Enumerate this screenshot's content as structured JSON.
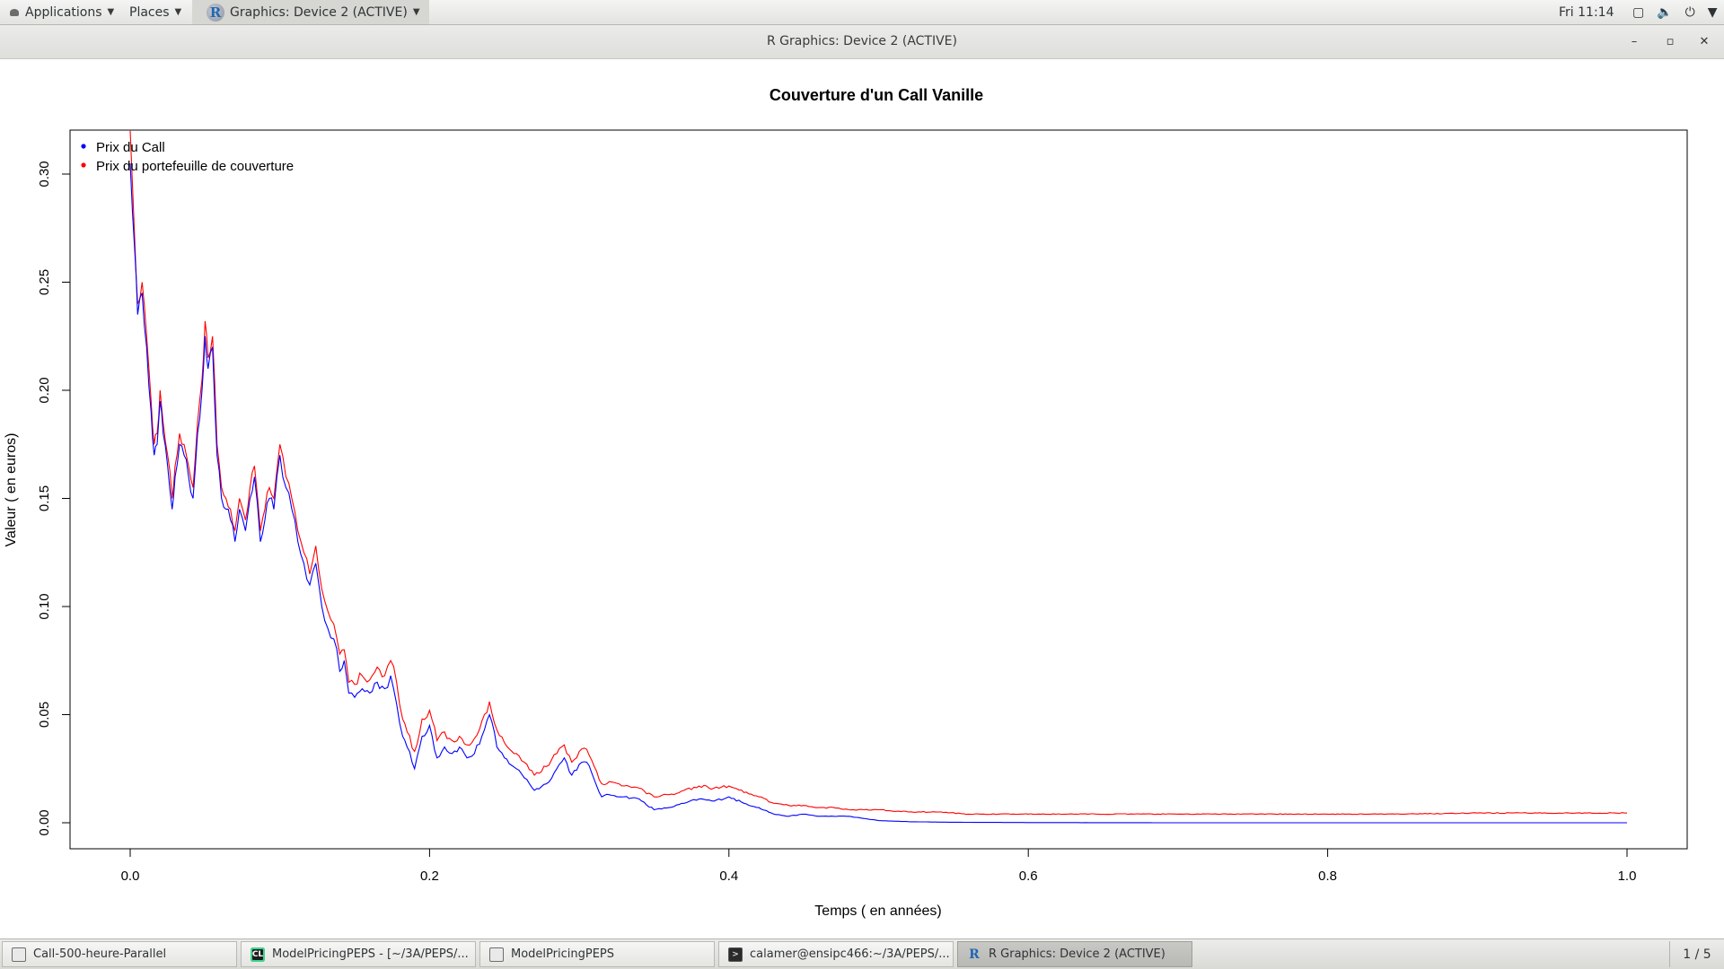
{
  "topbar": {
    "applications_label": "Applications",
    "places_label": "Places",
    "window_menu_label": "Graphics: Device 2 (ACTIVE)",
    "clock": "Fri 11:14"
  },
  "window": {
    "title": "R Graphics: Device 2 (ACTIVE)",
    "minimize": "–",
    "maximize": "▫",
    "close": "✕"
  },
  "chart_data": {
    "type": "line",
    "title": "Couverture d'un Call Vanille",
    "xlabel": "Temps ( en années)",
    "ylabel": "Valeur ( en euros)",
    "xlim": [
      0,
      1
    ],
    "ylim": [
      0,
      0.31
    ],
    "x_ticks": [
      "0.0",
      "0.2",
      "0.4",
      "0.6",
      "0.8",
      "1.0"
    ],
    "y_ticks": [
      "0.00",
      "0.05",
      "0.10",
      "0.15",
      "0.20",
      "0.25",
      "0.30"
    ],
    "legend_position": "top-left",
    "grid": false,
    "series": [
      {
        "name": "Prix du Call",
        "color": "#0000ff",
        "x": [
          0,
          0.003,
          0.005,
          0.008,
          0.011,
          0.014,
          0.016,
          0.018,
          0.02,
          0.022,
          0.025,
          0.028,
          0.03,
          0.033,
          0.036,
          0.039,
          0.042,
          0.045,
          0.048,
          0.05,
          0.052,
          0.055,
          0.058,
          0.061,
          0.064,
          0.067,
          0.07,
          0.073,
          0.077,
          0.08,
          0.083,
          0.087,
          0.09,
          0.093,
          0.096,
          0.1,
          0.104,
          0.108,
          0.112,
          0.116,
          0.12,
          0.124,
          0.128,
          0.132,
          0.136,
          0.14,
          0.143,
          0.146,
          0.15,
          0.155,
          0.16,
          0.165,
          0.17,
          0.174,
          0.178,
          0.182,
          0.185,
          0.19,
          0.195,
          0.2,
          0.205,
          0.21,
          0.215,
          0.22,
          0.225,
          0.23,
          0.235,
          0.24,
          0.245,
          0.25,
          0.258,
          0.265,
          0.27,
          0.278,
          0.285,
          0.29,
          0.295,
          0.3,
          0.305,
          0.31,
          0.315,
          0.32,
          0.33,
          0.34,
          0.35,
          0.36,
          0.37,
          0.38,
          0.39,
          0.4,
          0.41,
          0.42,
          0.43,
          0.44,
          0.45,
          0.46,
          0.47,
          0.48,
          0.49,
          0.5,
          0.52,
          0.54,
          0.56,
          0.6,
          0.7,
          0.8,
          0.9,
          1.0
        ],
        "values": [
          0.305,
          0.265,
          0.235,
          0.245,
          0.22,
          0.19,
          0.17,
          0.175,
          0.195,
          0.18,
          0.165,
          0.145,
          0.16,
          0.175,
          0.17,
          0.16,
          0.15,
          0.18,
          0.2,
          0.225,
          0.21,
          0.22,
          0.17,
          0.15,
          0.145,
          0.14,
          0.13,
          0.145,
          0.135,
          0.15,
          0.16,
          0.13,
          0.14,
          0.15,
          0.145,
          0.17,
          0.155,
          0.145,
          0.13,
          0.12,
          0.11,
          0.12,
          0.1,
          0.09,
          0.085,
          0.07,
          0.075,
          0.06,
          0.058,
          0.062,
          0.06,
          0.065,
          0.062,
          0.068,
          0.055,
          0.04,
          0.035,
          0.025,
          0.04,
          0.045,
          0.03,
          0.035,
          0.032,
          0.035,
          0.03,
          0.032,
          0.04,
          0.05,
          0.035,
          0.03,
          0.025,
          0.02,
          0.015,
          0.018,
          0.025,
          0.03,
          0.022,
          0.027,
          0.028,
          0.02,
          0.012,
          0.013,
          0.012,
          0.011,
          0.006,
          0.007,
          0.009,
          0.011,
          0.01,
          0.012,
          0.009,
          0.007,
          0.004,
          0.003,
          0.004,
          0.003,
          0.003,
          0.003,
          0.002,
          0.001,
          0.0005,
          0.0003,
          0.0002,
          0.0001,
          0.0,
          0.0,
          0.0,
          0.0
        ]
      },
      {
        "name": "Prix du portefeuille de couverture",
        "color": "#ff0000",
        "x": [
          0,
          0.003,
          0.005,
          0.008,
          0.011,
          0.014,
          0.016,
          0.018,
          0.02,
          0.022,
          0.025,
          0.028,
          0.03,
          0.033,
          0.036,
          0.039,
          0.042,
          0.045,
          0.048,
          0.05,
          0.052,
          0.055,
          0.058,
          0.061,
          0.064,
          0.067,
          0.07,
          0.073,
          0.077,
          0.08,
          0.083,
          0.087,
          0.09,
          0.093,
          0.096,
          0.1,
          0.104,
          0.108,
          0.112,
          0.116,
          0.12,
          0.124,
          0.128,
          0.132,
          0.136,
          0.14,
          0.143,
          0.146,
          0.15,
          0.155,
          0.16,
          0.165,
          0.17,
          0.174,
          0.178,
          0.182,
          0.185,
          0.19,
          0.195,
          0.2,
          0.205,
          0.21,
          0.215,
          0.22,
          0.225,
          0.23,
          0.235,
          0.24,
          0.245,
          0.25,
          0.258,
          0.265,
          0.27,
          0.278,
          0.285,
          0.29,
          0.295,
          0.3,
          0.305,
          0.31,
          0.315,
          0.32,
          0.33,
          0.34,
          0.35,
          0.36,
          0.37,
          0.38,
          0.39,
          0.4,
          0.41,
          0.42,
          0.43,
          0.44,
          0.45,
          0.46,
          0.47,
          0.48,
          0.49,
          0.5,
          0.52,
          0.54,
          0.56,
          0.6,
          0.7,
          0.8,
          0.85,
          0.9,
          1.0
        ],
        "values": [
          0.32,
          0.27,
          0.24,
          0.25,
          0.225,
          0.195,
          0.175,
          0.18,
          0.2,
          0.185,
          0.17,
          0.15,
          0.165,
          0.18,
          0.175,
          0.165,
          0.155,
          0.185,
          0.205,
          0.232,
          0.215,
          0.225,
          0.175,
          0.155,
          0.15,
          0.145,
          0.135,
          0.15,
          0.14,
          0.155,
          0.165,
          0.135,
          0.145,
          0.155,
          0.15,
          0.175,
          0.16,
          0.15,
          0.135,
          0.125,
          0.115,
          0.128,
          0.108,
          0.098,
          0.092,
          0.078,
          0.08,
          0.065,
          0.064,
          0.068,
          0.066,
          0.072,
          0.068,
          0.075,
          0.065,
          0.048,
          0.042,
          0.033,
          0.048,
          0.052,
          0.038,
          0.042,
          0.038,
          0.04,
          0.036,
          0.039,
          0.047,
          0.056,
          0.043,
          0.037,
          0.032,
          0.027,
          0.022,
          0.026,
          0.032,
          0.036,
          0.028,
          0.033,
          0.034,
          0.026,
          0.018,
          0.019,
          0.017,
          0.016,
          0.012,
          0.013,
          0.015,
          0.017,
          0.016,
          0.017,
          0.014,
          0.012,
          0.009,
          0.008,
          0.008,
          0.007,
          0.007,
          0.006,
          0.006,
          0.006,
          0.005,
          0.005,
          0.004,
          0.004,
          0.004,
          0.004,
          0.004,
          0.0045,
          0.0045
        ]
      }
    ]
  },
  "taskbar": {
    "tasks": [
      {
        "label": "Call-500-heure-Parallel",
        "icon": "document-icon"
      },
      {
        "label": "ModelPricingPEPS - [~/3A/PEPS/...",
        "icon": "clion-icon"
      },
      {
        "label": "ModelPricingPEPS",
        "icon": "document-icon"
      },
      {
        "label": "calamer@ensipc466:~/3A/PEPS/...",
        "icon": "terminal-icon"
      },
      {
        "label": "R Graphics: Device 2 (ACTIVE)",
        "icon": "r-icon"
      }
    ],
    "pager": "1 / 5"
  }
}
